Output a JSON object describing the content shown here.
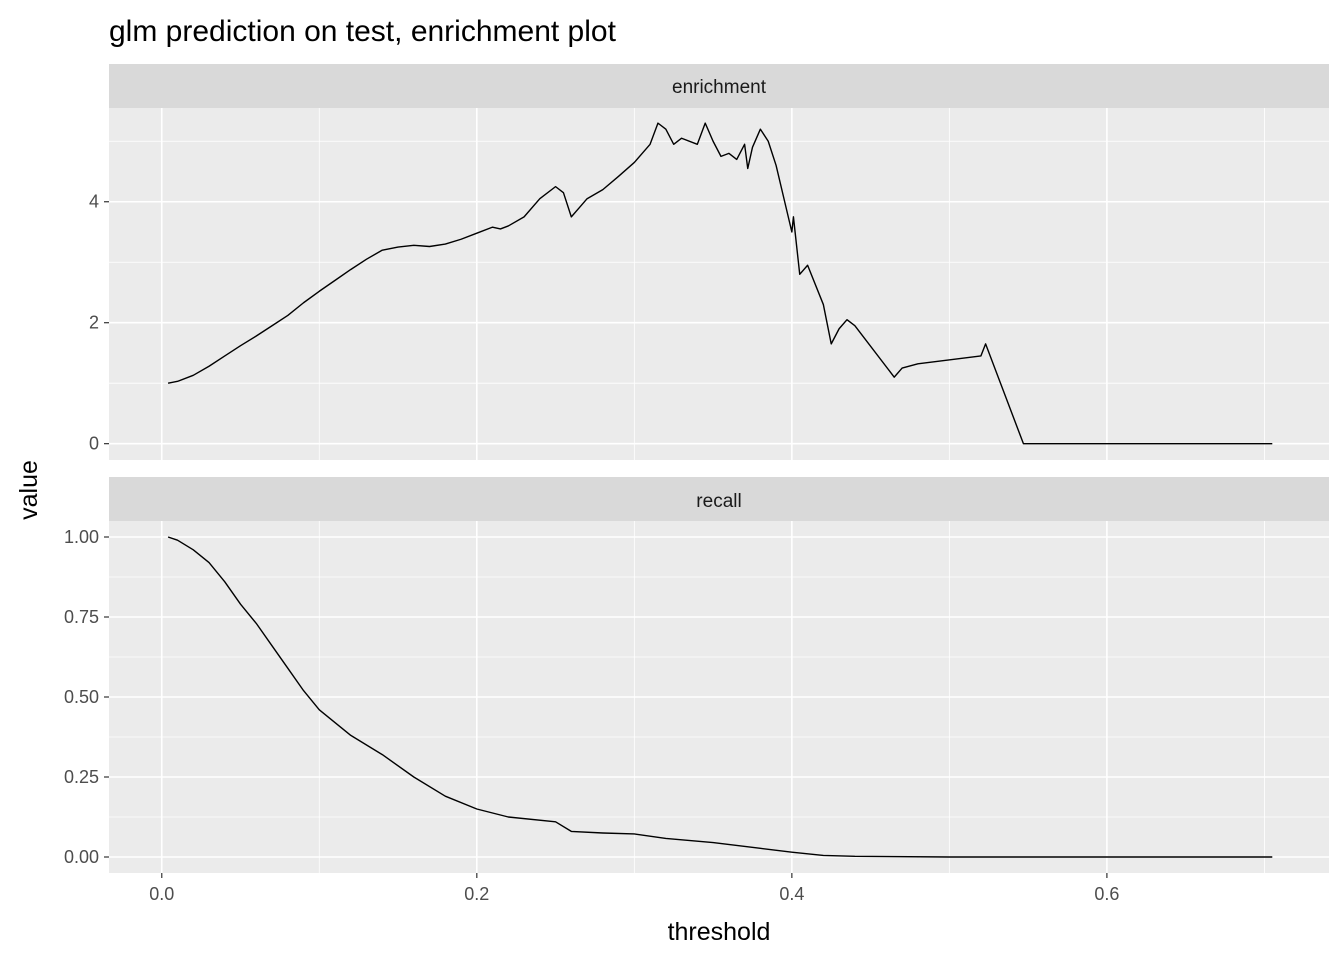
{
  "chart_data": {
    "type": "line",
    "title": "glm prediction on test, enrichment plot",
    "xlabel": "threshold",
    "ylabel": "value",
    "xlim": [
      -0.0335,
      0.741
    ],
    "x_ticks": [
      0.0,
      0.2,
      0.4,
      0.6
    ],
    "x_tick_labels": [
      "0.0",
      "0.2",
      "0.4",
      "0.6"
    ],
    "facet_layout": "vertical",
    "shared_x_axis": true,
    "grid": true,
    "legend": "none",
    "line_color": "#000000",
    "panel_color": "#ebebeb",
    "strip_color": "#d9d9d9",
    "panels": [
      {
        "strip": "enrichment",
        "ylim": [
          -0.27,
          5.55
        ],
        "y_ticks": [
          0,
          2,
          4
        ],
        "y_tick_labels": [
          "0",
          "2",
          "4"
        ],
        "series": [
          {
            "x": [
              0.004,
              0.01,
              0.02,
              0.03,
              0.04,
              0.05,
              0.06,
              0.07,
              0.08,
              0.09,
              0.1,
              0.11,
              0.12,
              0.13,
              0.14,
              0.15,
              0.16,
              0.17,
              0.18,
              0.19,
              0.2,
              0.21,
              0.215,
              0.22,
              0.23,
              0.24,
              0.25,
              0.255,
              0.26,
              0.265,
              0.27,
              0.28,
              0.29,
              0.3,
              0.31,
              0.315,
              0.32,
              0.325,
              0.33,
              0.34,
              0.345,
              0.35,
              0.355,
              0.36,
              0.365,
              0.37,
              0.372,
              0.375,
              0.38,
              0.385,
              0.39,
              0.4,
              0.401,
              0.405,
              0.41,
              0.42,
              0.425,
              0.43,
              0.435,
              0.44,
              0.465,
              0.47,
              0.48,
              0.52,
              0.523,
              0.547,
              0.705
            ],
            "values": [
              1.0,
              1.03,
              1.13,
              1.28,
              1.45,
              1.62,
              1.78,
              1.95,
              2.12,
              2.33,
              2.52,
              2.7,
              2.88,
              3.05,
              3.2,
              3.25,
              3.28,
              3.26,
              3.3,
              3.38,
              3.48,
              3.58,
              3.55,
              3.6,
              3.75,
              4.05,
              4.25,
              4.15,
              3.75,
              3.9,
              4.05,
              4.2,
              4.42,
              4.65,
              4.95,
              5.3,
              5.2,
              4.95,
              5.05,
              4.95,
              5.3,
              5.0,
              4.75,
              4.8,
              4.7,
              4.95,
              4.55,
              4.9,
              5.2,
              5.0,
              4.6,
              3.5,
              3.75,
              2.8,
              2.95,
              2.3,
              1.65,
              1.9,
              2.05,
              1.95,
              1.1,
              1.25,
              1.32,
              1.45,
              1.65,
              0.0,
              0.0
            ]
          }
        ]
      },
      {
        "strip": "recall",
        "ylim": [
          -0.05,
          1.05
        ],
        "y_ticks": [
          0.0,
          0.25,
          0.5,
          0.75,
          1.0
        ],
        "y_tick_labels": [
          "0.00",
          "0.25",
          "0.50",
          "0.75",
          "1.00"
        ],
        "series": [
          {
            "x": [
              0.004,
              0.01,
              0.02,
              0.03,
              0.04,
              0.05,
              0.06,
              0.07,
              0.08,
              0.09,
              0.1,
              0.12,
              0.14,
              0.16,
              0.18,
              0.2,
              0.22,
              0.25,
              0.26,
              0.28,
              0.3,
              0.32,
              0.35,
              0.38,
              0.4,
              0.42,
              0.44,
              0.5,
              0.6,
              0.705
            ],
            "values": [
              1.0,
              0.99,
              0.96,
              0.92,
              0.86,
              0.79,
              0.73,
              0.66,
              0.59,
              0.52,
              0.46,
              0.38,
              0.32,
              0.25,
              0.19,
              0.15,
              0.125,
              0.11,
              0.08,
              0.075,
              0.072,
              0.058,
              0.045,
              0.027,
              0.015,
              0.005,
              0.002,
              0.0,
              0.0,
              0.0
            ]
          }
        ]
      }
    ]
  }
}
